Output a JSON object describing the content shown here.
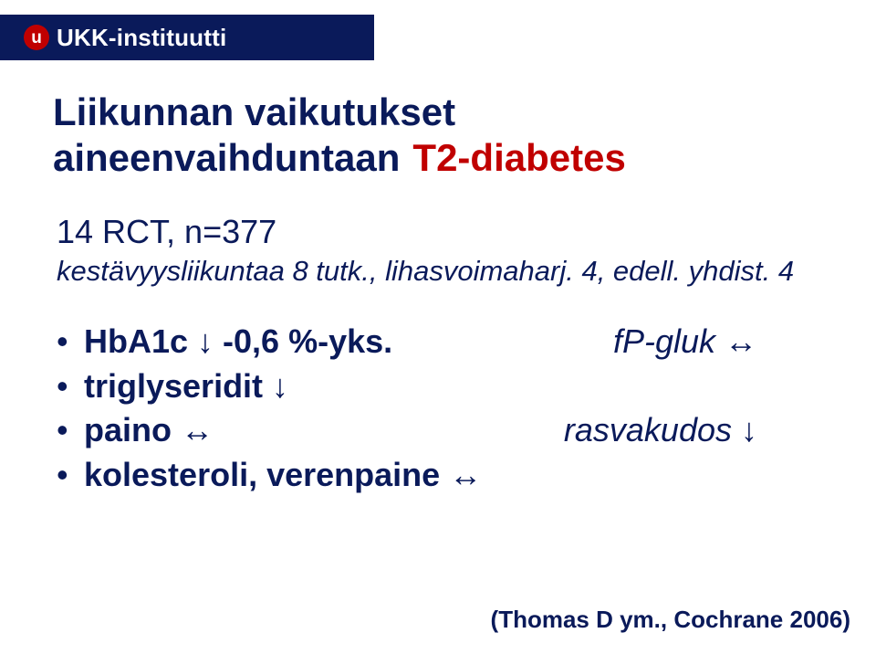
{
  "header": {
    "logo_letter": "u",
    "org_name": "UKK-instituutti"
  },
  "title": {
    "line1": "Liikunnan vaikutukset",
    "line2_prefix": "aineenvaihduntaan",
    "line2_red": "T2-diabetes"
  },
  "study": {
    "line1": "14 RCT, n=377",
    "line2": "kestävyysliikuntaa 8 tutk., lihasvoimaharj. 4, edell. yhdist. 4"
  },
  "bullets": {
    "b1_left": "HbA1c ↓  -0,6 %-yks.",
    "b1_right": "fP-gluk ↔",
    "b2": "triglyseridit ↓",
    "b3_left": "paino ↔",
    "b3_right": "rasvakudos ↓",
    "b4": "kolesteroli, verenpaine ↔"
  },
  "citation": "(Thomas D ym., Cochrane 2006)",
  "colors": {
    "brand_blue": "#0a1a5a",
    "brand_red": "#c00000",
    "white": "#ffffff"
  }
}
